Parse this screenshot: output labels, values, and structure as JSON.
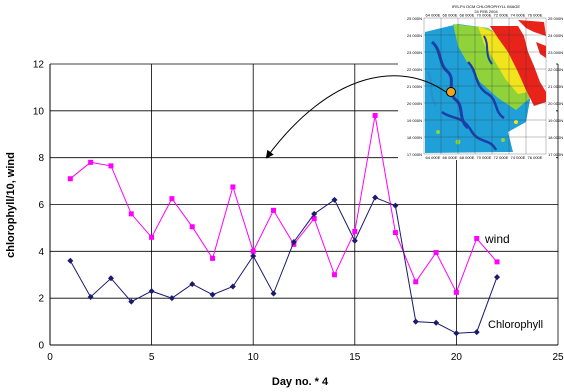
{
  "chart_data": {
    "type": "line",
    "xlabel": "Day no. * 4",
    "ylabel": "chlorophyll/10, wind",
    "xlim": [
      0,
      25
    ],
    "ylim": [
      0,
      12
    ],
    "xticks": [
      0,
      5,
      10,
      15,
      20,
      25
    ],
    "yticks": [
      0,
      2,
      4,
      6,
      8,
      10,
      12
    ],
    "grid": true,
    "annotations": [
      {
        "text": "wind",
        "series": "wind"
      },
      {
        "text": "Chlorophyll",
        "series": "chlorophyll"
      }
    ],
    "series": [
      {
        "name": "wind",
        "color": "#ff00ff",
        "marker": "square",
        "x": [
          1,
          2,
          3,
          4,
          5,
          6,
          7,
          8,
          9,
          10,
          11,
          12,
          13,
          14,
          15,
          16,
          17,
          18,
          19,
          20,
          21,
          22
        ],
        "y": [
          7.1,
          7.8,
          7.65,
          5.6,
          4.6,
          6.25,
          5.05,
          3.7,
          6.75,
          4.0,
          5.75,
          4.3,
          5.4,
          3.0,
          4.85,
          9.8,
          4.8,
          2.7,
          3.95,
          2.25,
          4.55,
          3.55
        ]
      },
      {
        "name": "chlorophyll",
        "color": "#1a1a6e",
        "marker": "diamond",
        "x": [
          1,
          2,
          3,
          4,
          5,
          6,
          7,
          8,
          9,
          10,
          11,
          12,
          13,
          14,
          15,
          16,
          17,
          18,
          19,
          20,
          21,
          22
        ],
        "y": [
          3.6,
          2.05,
          2.85,
          1.85,
          2.3,
          2.0,
          2.6,
          2.15,
          2.5,
          3.8,
          2.2,
          4.4,
          5.6,
          6.2,
          4.45,
          6.3,
          5.95,
          1.0,
          0.95,
          0.5,
          0.55,
          2.9
        ]
      }
    ]
  },
  "inset": {
    "title_line1": "IRS-P4 OCM CHLOROPHYLL IMAGE",
    "title_line2": "24 FEB 2004",
    "left_labels": [
      "25 000N",
      "24 000N",
      "23 000N",
      "22 000N",
      "21 000N",
      "20 000N",
      "19 000N",
      "18 000N",
      "17 000N"
    ],
    "right_labels": [
      "25 000N",
      "24 000N",
      "23 000N",
      "22 000N",
      "21 000N",
      "20 000N",
      "19 000N",
      "18 000N",
      "17 000N"
    ],
    "top_labels": [
      "64 000E",
      "66 000E",
      "68 000E",
      "70 000E",
      "72 000E",
      "74 000E",
      "76 000E"
    ],
    "bottom_labels": [
      "64 000E",
      "66 000E",
      "68 000E",
      "70 000E",
      "72 000E",
      "74 000E",
      "76 000E"
    ]
  }
}
